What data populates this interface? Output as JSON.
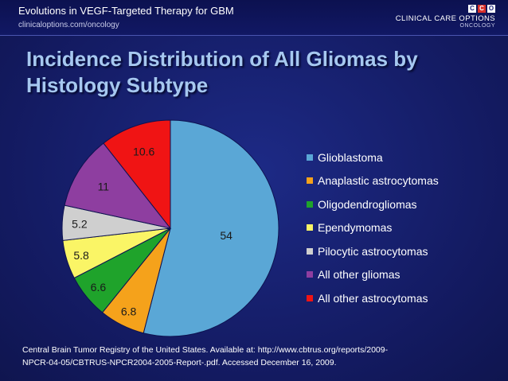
{
  "header": {
    "deck_title": "Evolutions in VEGF-Targeted Therapy for GBM",
    "url": "clinicaloptions.com/oncology",
    "logo_badge": [
      "C",
      "C",
      "O"
    ],
    "logo_name": "CLINICAL CARE OPTIONS",
    "logo_sub": "ONCOLOGY"
  },
  "slide": {
    "title_line1": "Incidence Distribution of All Gliomas by",
    "title_line2": "Histology Subtype"
  },
  "chart_data": {
    "type": "pie",
    "title": "",
    "categories": [
      "Glioblastoma",
      "Anaplastic astrocytomas",
      "Oligodendrogliomas",
      "Ependymomas",
      "Pilocytic astrocytomas",
      "All other gliomas",
      "All other astrocytomas"
    ],
    "values": [
      54,
      6.8,
      6.6,
      5.8,
      5.2,
      11,
      10.6
    ],
    "labels": [
      "54",
      "6.8",
      "6.6",
      "5.8",
      "5.2",
      "11",
      "10.6"
    ],
    "colors": [
      "#5aa7d6",
      "#f5a21b",
      "#1fa32b",
      "#faf566",
      "#cfcfcf",
      "#8e3ea0",
      "#f01414"
    ],
    "start_angle_deg": 0,
    "direction": "clockwise",
    "legend_position": "right"
  },
  "footnote": {
    "line1": "Central Brain Tumor Registry of the United States. Available at: http://www.cbtrus.org/reports/2009-",
    "line2": "NPCR-04-05/CBTRUS-NPCR2004-2005-Report-.pdf. Accessed December 16, 2009."
  }
}
